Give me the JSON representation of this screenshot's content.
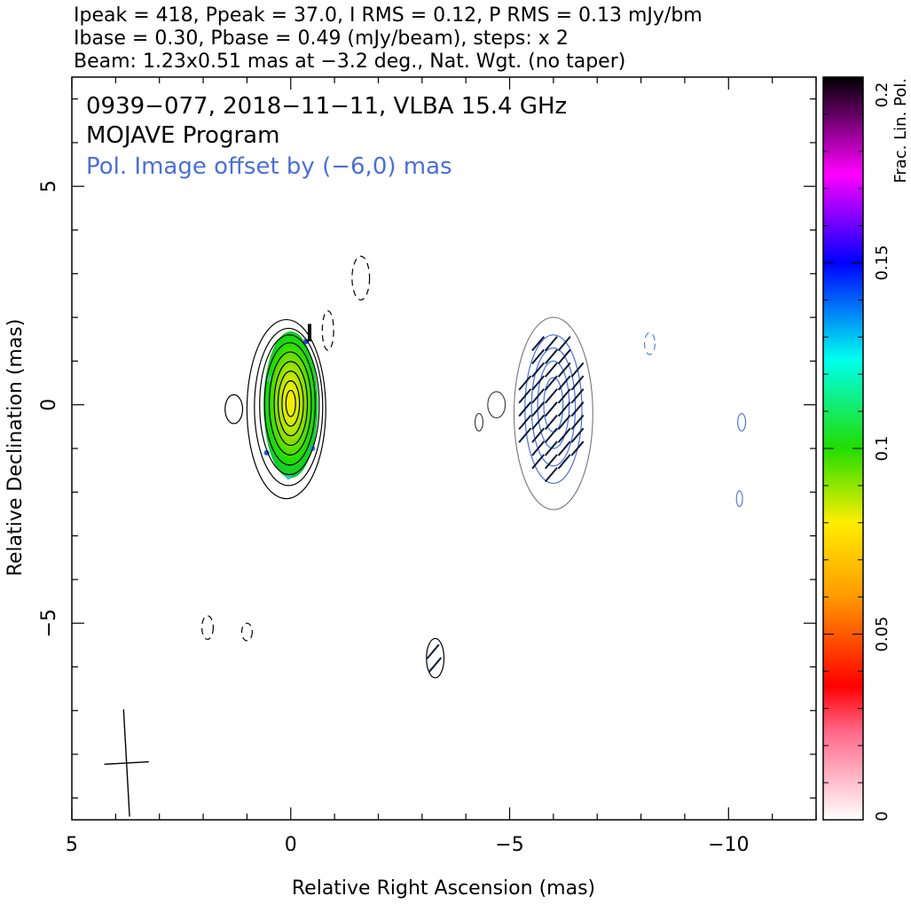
{
  "header": {
    "line1": "Ipeak = 418, Ppeak = 37.0, I RMS = 0.12, P RMS = 0.13 mJy/bm",
    "line2": "Ibase = 0.30, Pbase = 0.49 (mJy/beam), steps: x 2",
    "line3": "Beam: 1.23x0.51 mas at −3.2 deg., Nat. Wgt. (no taper)"
  },
  "labels": {
    "source": "0939−077, 2018−11−11, VLBA 15.4 GHz",
    "program": "MOJAVE Program",
    "pol_offset": "Pol. Image offset by (−6,0) mas"
  },
  "chart_data": {
    "type": "contour",
    "xlabel": "Relative Right Ascension (mas)",
    "ylabel": "Relative Declination (mas)",
    "xlim": [
      5,
      -12
    ],
    "ylim": [
      -9.5,
      7.5
    ],
    "x_ticks": [
      5,
      0,
      -5,
      -10
    ],
    "x_tick_labels": [
      "5",
      "0",
      "−5",
      "−10"
    ],
    "y_ticks": [
      5,
      0,
      -5
    ],
    "y_tick_labels": [
      "5",
      "0",
      "−5"
    ],
    "colorbar": {
      "label": "Frac. Lin. Pol.",
      "min": 0,
      "max": 0.2,
      "ticks": [
        0,
        0.05,
        0.1,
        0.15,
        0.2
      ],
      "tick_labels": [
        "0",
        "0.05",
        "0.1",
        "0.15",
        "0.2"
      ],
      "colors": [
        "#ffffff",
        "#ff0000",
        "#ff8800",
        "#ffff00",
        "#22dd00",
        "#00ffee",
        "#0000ff",
        "#ff00ff",
        "#000000"
      ]
    },
    "stokes_i_contours": [
      {
        "x": 0.1,
        "y": -0.1,
        "rx": 0.9,
        "ry": 2.05
      },
      {
        "x": 0.05,
        "y": -0.05,
        "rx": 0.78,
        "ry": 1.8
      },
      {
        "x": 0.03,
        "y": 0.0,
        "rx": 0.68,
        "ry": 1.6
      },
      {
        "x": 0.02,
        "y": 0.02,
        "rx": 0.58,
        "ry": 1.4
      },
      {
        "x": 0.01,
        "y": 0.03,
        "rx": 0.48,
        "ry": 1.18
      },
      {
        "x": 0.0,
        "y": 0.03,
        "rx": 0.38,
        "ry": 0.96
      },
      {
        "x": 0.0,
        "y": 0.03,
        "rx": 0.29,
        "ry": 0.74
      },
      {
        "x": 0.0,
        "y": 0.03,
        "rx": 0.2,
        "ry": 0.52
      },
      {
        "x": 0.0,
        "y": 0.03,
        "rx": 0.11,
        "ry": 0.3
      }
    ],
    "stokes_i_blobs": [
      {
        "x": 1.3,
        "y": -0.1,
        "rx": 0.2,
        "ry": 0.33,
        "dashed": false
      },
      {
        "x": -1.6,
        "y": 2.9,
        "rx": 0.2,
        "ry": 0.5,
        "dashed": true
      },
      {
        "x": -0.85,
        "y": 1.7,
        "rx": 0.13,
        "ry": 0.45,
        "dashed": true
      },
      {
        "x": 1.9,
        "y": -5.1,
        "rx": 0.13,
        "ry": 0.27,
        "dashed": true
      },
      {
        "x": 1.0,
        "y": -5.2,
        "rx": 0.12,
        "ry": 0.2,
        "dashed": true
      },
      {
        "x": -3.3,
        "y": -5.8,
        "rx": 0.2,
        "ry": 0.45,
        "dashed": false
      }
    ],
    "fractional_pol_map": {
      "x": 0.0,
      "y": 0.0,
      "rx": 0.62,
      "ry": 1.68,
      "peak": 0.09
    },
    "pol_offset_image": {
      "outer_contour": {
        "x": -6.0,
        "y": -0.2,
        "rx": 0.9,
        "ry": 2.2
      },
      "pol_contours": [
        {
          "x": -6.0,
          "y": -0.1,
          "rx": 0.65,
          "ry": 1.7
        },
        {
          "x": -6.0,
          "y": -0.05,
          "rx": 0.5,
          "ry": 1.35
        },
        {
          "x": -6.0,
          "y": 0.0,
          "rx": 0.36,
          "ry": 1.0
        },
        {
          "x": -6.0,
          "y": 0.0,
          "rx": 0.22,
          "ry": 0.62
        }
      ],
      "small_blobs": [
        {
          "x": -4.7,
          "y": 0.0,
          "rx": 0.2,
          "ry": 0.3
        },
        {
          "x": -4.3,
          "y": -0.4,
          "rx": 0.09,
          "ry": 0.2
        },
        {
          "x": -10.3,
          "y": -0.4,
          "rx": 0.09,
          "ry": 0.2
        },
        {
          "x": -10.25,
          "y": -2.15,
          "rx": 0.07,
          "ry": 0.18
        },
        {
          "x": -8.2,
          "y": 1.4,
          "rx": 0.12,
          "ry": 0.25
        }
      ]
    },
    "evpa_vectors": {
      "x_range": [
        -5.35,
        -6.6
      ],
      "y_range": [
        -1.6,
        1.5
      ],
      "step": 0.3,
      "length": 0.42,
      "angle_deg": 40
    },
    "beam": {
      "x": 3.75,
      "y": -8.2,
      "major_mas": 1.23,
      "minor_mas": 0.51,
      "pa_deg": -3.2
    }
  }
}
